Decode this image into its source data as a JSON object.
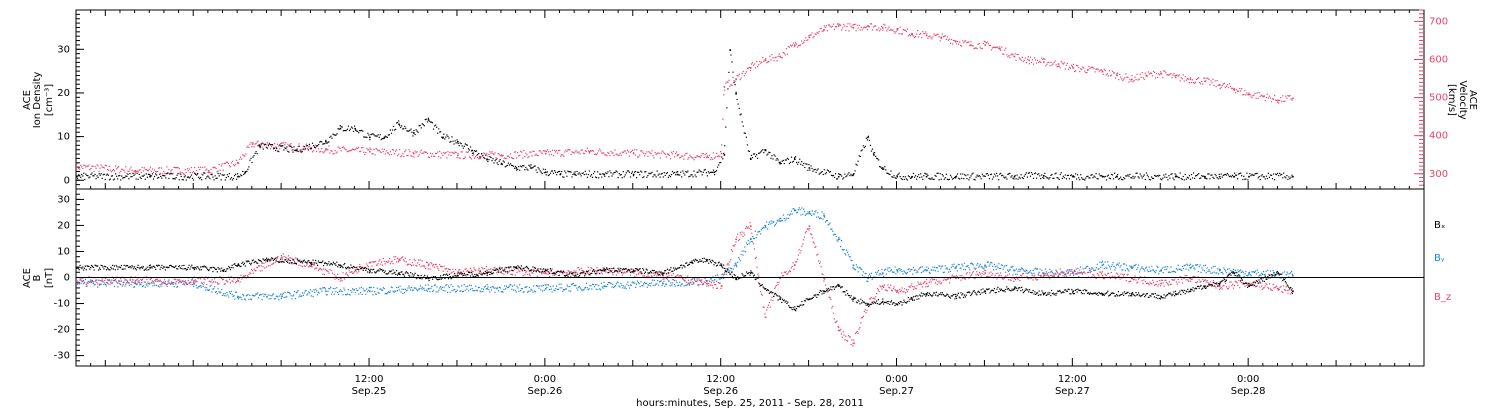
{
  "figure": {
    "x_axis": {
      "title": "hours:minutes, Sep. 25, 2011 - Sep. 28, 2011",
      "range_hours": [
        -8,
        84
      ],
      "ticks": [
        {
          "hour": 12,
          "time": "12:00",
          "date": "Sep.25"
        },
        {
          "hour": 24,
          "time": "0:00",
          "date": "Sep.26"
        },
        {
          "hour": 36,
          "time": "12:00",
          "date": "Sep.26"
        },
        {
          "hour": 48,
          "time": "0:00",
          "date": "Sep.27"
        },
        {
          "hour": 60,
          "time": "12:00",
          "date": "Sep.27"
        },
        {
          "hour": 72,
          "time": "0:00",
          "date": "Sep.28"
        }
      ]
    }
  },
  "chart_data": [
    {
      "type": "scatter",
      "panel": "top",
      "ylabel_lines": [
        "ACE",
        "Ion Density",
        "[cm⁻³]"
      ],
      "ylim": [
        -2,
        39
      ],
      "yticks": [
        0,
        10,
        20,
        30
      ],
      "y2label_lines": [
        "ACE",
        "Velocity",
        "[km/s]"
      ],
      "y2lim": [
        260,
        730
      ],
      "y2ticks": [
        300,
        400,
        500,
        600,
        700
      ],
      "colors": {
        "density": "#000000",
        "velocity": "#e8436c"
      },
      "series": [
        {
          "name": "Ion Density",
          "axis": "left",
          "x": [
            -8,
            -3,
            3,
            3.5,
            4.5,
            7,
            9,
            10,
            11,
            12,
            13,
            14,
            15,
            16,
            17,
            18,
            19,
            20,
            21,
            22,
            23,
            24,
            25,
            26,
            28,
            30,
            33,
            35.5,
            36.2,
            36.6,
            37,
            38,
            39,
            40,
            41,
            42,
            44,
            45,
            46,
            46.4,
            47,
            48,
            49,
            50,
            52,
            56,
            58,
            60,
            62,
            63,
            67,
            69,
            70,
            71,
            72,
            75
          ],
          "y": [
            1,
            1,
            1,
            2,
            8,
            7,
            9,
            12,
            12,
            10,
            10,
            13,
            11,
            14,
            10,
            9,
            7,
            5,
            4,
            3,
            3,
            2,
            1.5,
            1.5,
            1.5,
            1.5,
            1.5,
            2,
            6,
            30,
            20,
            5,
            7,
            4,
            5,
            3,
            1,
            1.5,
            10,
            6,
            3,
            1,
            1,
            1,
            1,
            1,
            1.2,
            1,
            1,
            1,
            1,
            1,
            1,
            1,
            1,
            1
          ]
        },
        {
          "name": "Velocity",
          "axis": "right",
          "x": [
            -8,
            -4,
            1,
            3,
            4,
            6,
            9,
            12,
            15,
            18,
            21,
            24,
            27,
            30,
            33,
            35,
            36,
            36.2,
            37,
            38,
            39,
            40,
            41,
            42,
            43,
            44,
            45,
            46,
            47,
            48,
            49,
            50,
            51,
            52,
            53,
            54,
            55,
            56,
            57,
            58,
            59,
            60,
            61,
            62,
            63,
            64,
            65,
            66,
            67,
            68,
            69,
            70,
            71,
            72,
            73,
            74,
            75
          ],
          "y": [
            320,
            310,
            310,
            330,
            380,
            375,
            365,
            360,
            355,
            350,
            350,
            355,
            360,
            355,
            350,
            345,
            355,
            530,
            550,
            580,
            600,
            610,
            640,
            660,
            680,
            690,
            685,
            690,
            685,
            680,
            670,
            665,
            660,
            650,
            640,
            640,
            630,
            610,
            600,
            595,
            590,
            580,
            575,
            570,
            560,
            550,
            560,
            565,
            555,
            550,
            545,
            535,
            525,
            510,
            505,
            495,
            500
          ]
        }
      ]
    },
    {
      "type": "scatter",
      "panel": "bottom",
      "ylabel_lines": [
        "ACE",
        "B",
        "[nT]"
      ],
      "ylim": [
        -34,
        34
      ],
      "yticks": [
        -30,
        -20,
        -10,
        0,
        10,
        20,
        30
      ],
      "zero_line": true,
      "series": [
        {
          "name": "Bₓ",
          "color": "#000000",
          "x": [
            -8,
            -3,
            0,
            2,
            3,
            5,
            8,
            10,
            12,
            14,
            16,
            18,
            20,
            22,
            24,
            26,
            28,
            30,
            32,
            34,
            35,
            36,
            37,
            38,
            39,
            40,
            41,
            42,
            43,
            44,
            45,
            46,
            47,
            48,
            49,
            50,
            52,
            54,
            56,
            58,
            60,
            62,
            64,
            66,
            67,
            68,
            69,
            70,
            71,
            72,
            74,
            75
          ],
          "y": [
            4,
            4,
            4,
            3,
            5,
            7,
            6,
            5,
            3,
            2,
            0,
            1,
            2,
            4,
            3,
            1,
            3,
            3,
            2,
            6,
            7,
            5,
            0,
            2,
            -4,
            -8,
            -12,
            -8,
            -5,
            -3,
            -8,
            -10,
            -9,
            -10,
            -8,
            -6,
            -7,
            -5,
            -4,
            -6,
            -5,
            -6,
            -6,
            -7,
            -6,
            -5,
            -3,
            -2,
            2,
            -3,
            2,
            -5
          ]
        },
        {
          "name": "Bᵧ",
          "color": "#1f85d6",
          "x": [
            -8,
            -4,
            0,
            3,
            6,
            9,
            12,
            16,
            20,
            24,
            28,
            32,
            35,
            36,
            37,
            38,
            39,
            40,
            41,
            42,
            43,
            44,
            45,
            46,
            47,
            48,
            50,
            52,
            54,
            56,
            58,
            60,
            62,
            64,
            66,
            68,
            70,
            72,
            75
          ],
          "y": [
            -2,
            -2,
            -2,
            -7,
            -7,
            -5,
            -5,
            -4,
            -4,
            -4,
            -3,
            -2,
            -1,
            0,
            5,
            15,
            20,
            22,
            26,
            25,
            24,
            15,
            5,
            0,
            2,
            3,
            3,
            4,
            5,
            3,
            2,
            2,
            5,
            4,
            3,
            4,
            3,
            2,
            1
          ]
        },
        {
          "name": "B_z",
          "color": "#e8436c",
          "x": [
            -8,
            -4,
            0,
            3,
            6,
            8,
            10,
            12,
            14,
            16,
            18,
            20,
            24,
            28,
            32,
            35,
            36,
            37,
            38,
            39,
            40,
            41,
            42,
            43,
            44,
            45,
            46,
            47,
            48,
            50,
            52,
            54,
            56,
            58,
            60,
            62,
            64,
            66,
            68,
            70,
            72,
            74,
            75
          ],
          "y": [
            -1,
            -1,
            -1,
            -1,
            8,
            5,
            0,
            6,
            7,
            5,
            2,
            3,
            2,
            3,
            1,
            -2,
            -3,
            15,
            20,
            -15,
            0,
            5,
            20,
            0,
            -20,
            -25,
            -10,
            -3,
            -5,
            -2,
            0,
            2,
            0,
            1,
            2,
            1,
            0,
            -2,
            0,
            -3,
            -2,
            -4,
            -5
          ]
        }
      ]
    }
  ]
}
